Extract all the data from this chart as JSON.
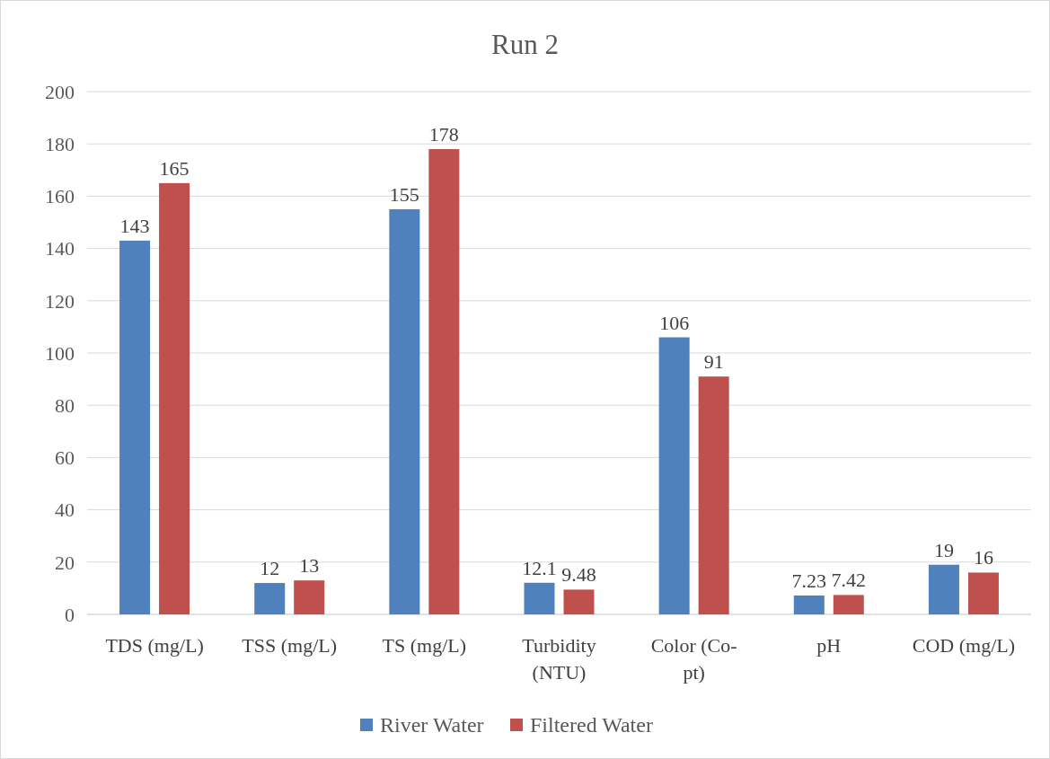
{
  "chart_data": {
    "type": "bar",
    "title": "Run 2",
    "categories": [
      "TDS (mg/L)",
      "TSS (mg/L)",
      "TS (mg/L)",
      "Turbidity (NTU)",
      "Color (Co-pt)",
      "pH",
      "COD (mg/L)"
    ],
    "series": [
      {
        "name": "River Water",
        "color": "#4f81bd",
        "values": [
          143,
          12,
          155,
          12.1,
          106,
          7.23,
          19
        ]
      },
      {
        "name": "Filtered Water",
        "color": "#c0504d",
        "values": [
          165,
          13,
          178,
          9.48,
          91,
          7.42,
          16
        ]
      }
    ],
    "ylim": [
      0,
      200
    ],
    "yticks": [
      0,
      20,
      40,
      60,
      80,
      100,
      120,
      140,
      160,
      180,
      200
    ],
    "grid": "y",
    "legend": "bottom",
    "data_labels": true
  }
}
